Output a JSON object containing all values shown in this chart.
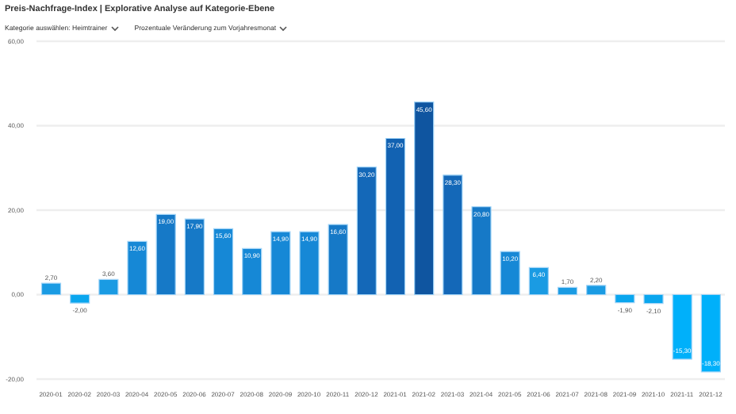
{
  "chart_data": {
    "type": "bar",
    "title": "Preis-Nachfrage-Index | Explorative Analyse auf Kategorie-Ebene",
    "annotations": [
      "Kategorie auswählen: Heimtrainer",
      "Prozentuale Veränderung zum Vorjahresmonat"
    ],
    "categories": [
      "2020-01",
      "2020-02",
      "2020-03",
      "2020-04",
      "2020-05",
      "2020-06",
      "2020-07",
      "2020-08",
      "2020-09",
      "2020-10",
      "2020-11",
      "2020-12",
      "2021-01",
      "2021-02",
      "2021-03",
      "2021-04",
      "2021-05",
      "2021-06",
      "2021-07",
      "2021-08",
      "2021-09",
      "2021-10",
      "2021-11",
      "2021-12"
    ],
    "values": [
      2.7,
      -2.0,
      3.6,
      12.6,
      19.0,
      17.9,
      15.6,
      10.9,
      14.9,
      14.9,
      16.6,
      30.2,
      37.0,
      45.6,
      28.3,
      20.8,
      10.2,
      6.4,
      1.7,
      2.2,
      -1.9,
      -2.1,
      -15.3,
      -18.3
    ],
    "colors": [
      "#1a9be3",
      "#0aa6ee",
      "#1a9be3",
      "#1688d6",
      "#1679c7",
      "#1679c7",
      "#1688d6",
      "#1688d6",
      "#1688d6",
      "#1688d6",
      "#1679c7",
      "#1468b8",
      "#1262b2",
      "#0f55a0",
      "#1468b8",
      "#1679c7",
      "#1688d6",
      "#1a9be3",
      "#1a9be3",
      "#1a9be3",
      "#0aa6ee",
      "#0aa6ee",
      "#00b0fa",
      "#00b0fa"
    ],
    "ylim": [
      -20,
      60
    ],
    "yticks": [
      {
        "value": -20,
        "label": "-20,00"
      },
      {
        "value": 0,
        "label": "0,00"
      },
      {
        "value": 20,
        "label": "20,00"
      },
      {
        "value": 40,
        "label": "40,00"
      },
      {
        "value": 60,
        "label": "60,00"
      }
    ],
    "value_labels": [
      "2,70",
      "-2,00",
      "3,60",
      "12,60",
      "19,00",
      "17,90",
      "15,60",
      "10,90",
      "14,90",
      "14,90",
      "16,60",
      "30,20",
      "37,00",
      "45,60",
      "28,30",
      "20,80",
      "10,20",
      "6,40",
      "1,70",
      "2,20",
      "-1,90",
      "-2,10",
      "-15,30",
      "-18,30"
    ],
    "grid": "y"
  }
}
